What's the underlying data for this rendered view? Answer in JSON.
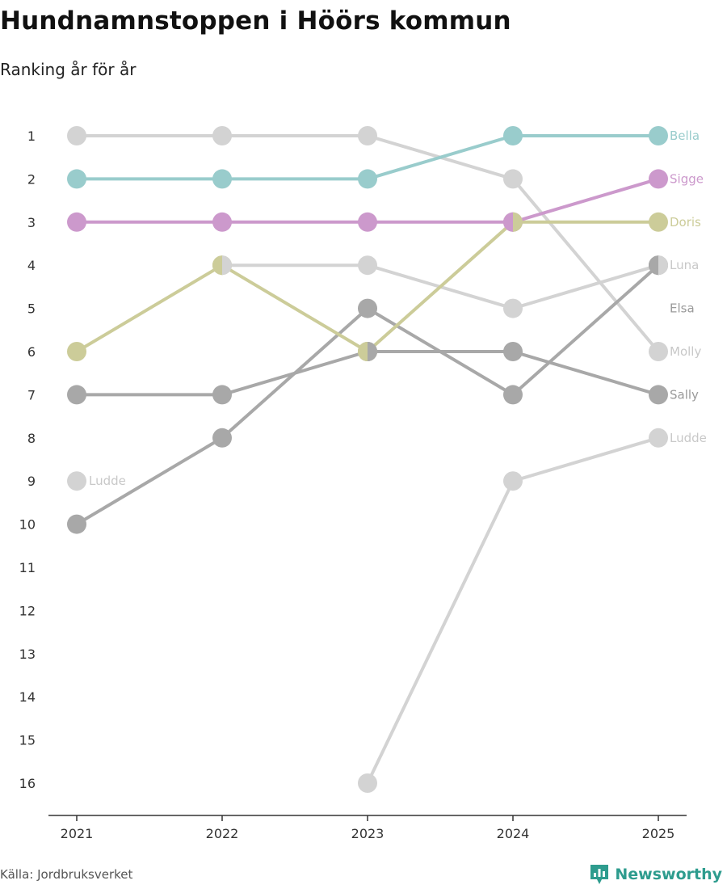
{
  "title": "Hundnamnstoppen i Höörs kommun",
  "subtitle": "Ranking år för år",
  "source": "Källa: Jordbruksverket",
  "brand": "Newsworthy",
  "brand_color": "#2e9c8e",
  "chart_data": {
    "type": "line",
    "chart_kind": "bump",
    "title": "Hundnamnstoppen i Höörs kommun",
    "subtitle": "Ranking år för år",
    "x": [
      "2021",
      "2022",
      "2023",
      "2024",
      "2025"
    ],
    "y_ticks": [
      1,
      2,
      3,
      4,
      5,
      6,
      7,
      8,
      9,
      10,
      11,
      12,
      13,
      14,
      15,
      16
    ],
    "ylim": [
      1,
      16
    ],
    "y_reversed": true,
    "xlabel": "",
    "ylabel": "",
    "series": [
      {
        "name": "Molly",
        "color": "#d3d3d3",
        "values": [
          1,
          1,
          1,
          2,
          6
        ]
      },
      {
        "name": "Luna",
        "color": "#d3d3d3",
        "values": [
          null,
          4,
          4,
          5,
          4
        ]
      },
      {
        "name": "Ludde",
        "color": "#d3d3d3",
        "values": [
          9,
          null,
          16,
          9,
          8
        ]
      },
      {
        "name": "Sally",
        "color": "#a8a8a8",
        "values": [
          7,
          7,
          6,
          6,
          7
        ]
      },
      {
        "name": "Elsa",
        "color": "#a8a8a8",
        "values": [
          10,
          8,
          5,
          7,
          4
        ]
      },
      {
        "name": "Doris",
        "color": "#cccc99",
        "values": [
          6,
          4,
          6,
          3,
          3
        ]
      },
      {
        "name": "Sigge",
        "color": "#cc99cc",
        "values": [
          3,
          3,
          3,
          3,
          2
        ]
      },
      {
        "name": "Bella",
        "color": "#99cccc",
        "values": [
          2,
          2,
          2,
          1,
          1
        ]
      }
    ],
    "labels_right": [
      {
        "text": "Bella",
        "rank": 1,
        "color": "#99cccc"
      },
      {
        "text": "Sigge",
        "rank": 2,
        "color": "#cc99cc"
      },
      {
        "text": "Doris",
        "rank": 3,
        "color": "#cccc99"
      },
      {
        "text": "Luna",
        "rank": 4,
        "color": "#c8c8c8"
      },
      {
        "text": "Elsa",
        "rank": 5,
        "color": "#9a9a9a"
      },
      {
        "text": "Molly",
        "rank": 6,
        "color": "#c8c8c8"
      },
      {
        "text": "Sally",
        "rank": 7,
        "color": "#9a9a9a"
      },
      {
        "text": "Ludde",
        "rank": 8,
        "color": "#c8c8c8"
      }
    ],
    "labels_left": [
      {
        "text": "Ludde",
        "rank": 9,
        "color": "#c8c8c8"
      }
    ]
  }
}
